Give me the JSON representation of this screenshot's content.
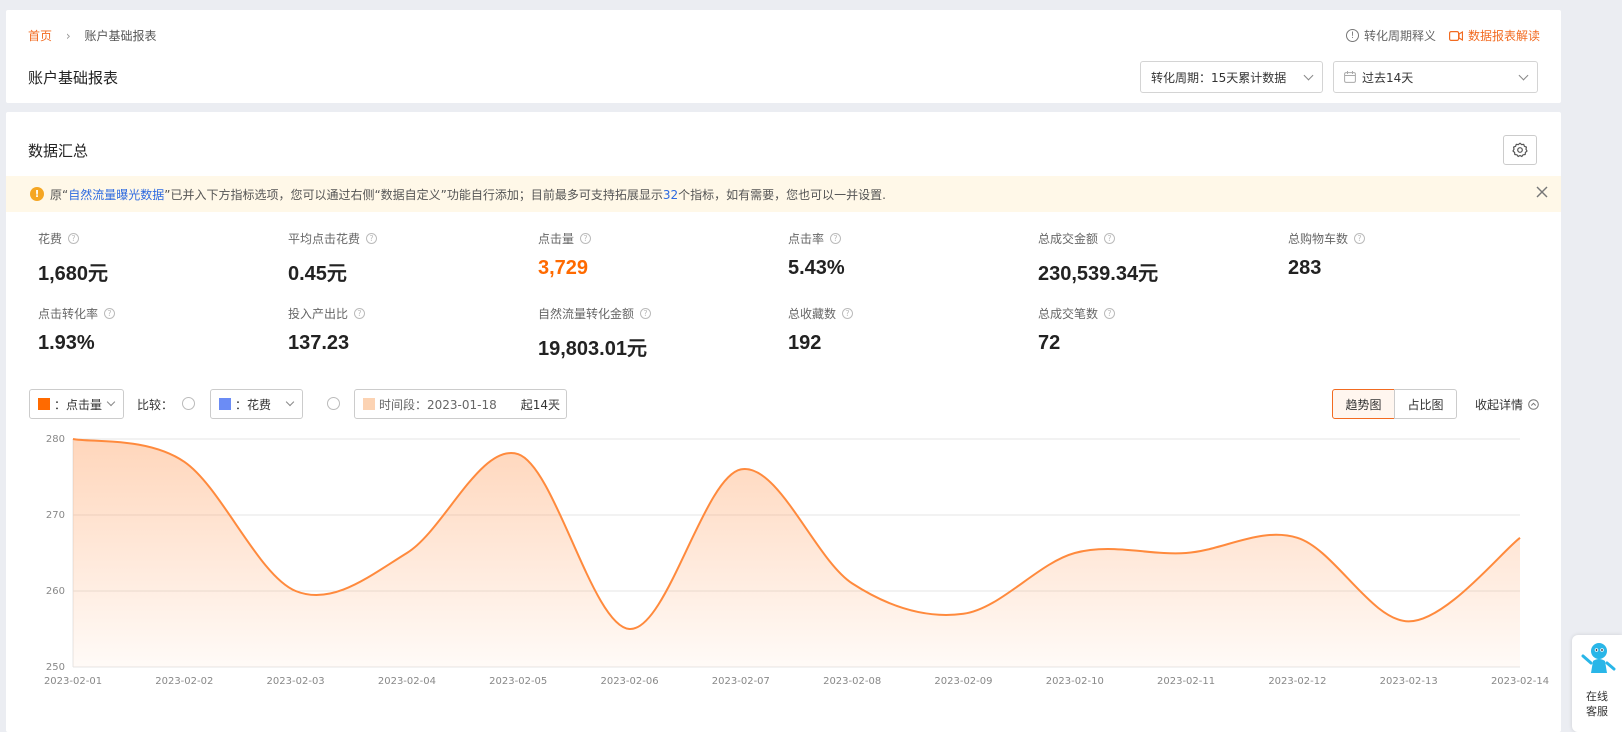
{
  "header": {
    "breadcrumb_home": "首页",
    "breadcrumb_current": "账户基础报表",
    "page_title": "账户基础报表",
    "conversion_help": "转化周期释义",
    "report_guide": "数据报表解读",
    "conversion_select": "转化周期：15天累计数据",
    "date_select": "过去14天"
  },
  "summary": {
    "title": "数据汇总",
    "notice": {
      "p1": "原“",
      "link": "自然流量曝光数据",
      "p2": "”已并入下方指标选项，您可以通过右侧“数据自定义”功能自行添加；目前最多可支持拓展显示",
      "num": "32",
      "p3": "个指标，如有需要，您也可以一并设置."
    },
    "metrics": [
      {
        "label": "花费",
        "value": "1,680元"
      },
      {
        "label": "平均点击花费",
        "value": "0.45元"
      },
      {
        "label": "点击量",
        "value": "3,729",
        "highlight": true
      },
      {
        "label": "点击率",
        "value": "5.43%"
      },
      {
        "label": "总成交金额",
        "value": "230,539.34元"
      },
      {
        "label": "总购物车数",
        "value": "283"
      },
      {
        "label": "点击转化率",
        "value": "1.93%"
      },
      {
        "label": "投入产出比",
        "value": "137.23"
      },
      {
        "label": "自然流量转化金额",
        "value": "19,803.01元"
      },
      {
        "label": "总收藏数",
        "value": "192"
      },
      {
        "label": "总成交笔数",
        "value": "72"
      }
    ]
  },
  "chart_controls": {
    "metric1": "：点击量",
    "compare_label": "比较：",
    "metric2": "：花费",
    "period_label": "时间段：2023-01-18",
    "period_span": "起14天",
    "trend_btn": "趋势图",
    "ratio_btn": "占比图",
    "collapse": "收起详情",
    "colors": {
      "metric1": "#ff6a00",
      "metric2": "#6b8cf5",
      "period": "#fcd3b3"
    }
  },
  "chart_data": {
    "type": "area",
    "x": [
      "2023-02-01",
      "2023-02-02",
      "2023-02-03",
      "2023-02-04",
      "2023-02-05",
      "2023-02-06",
      "2023-02-07",
      "2023-02-08",
      "2023-02-09",
      "2023-02-10",
      "2023-02-11",
      "2023-02-12",
      "2023-02-13",
      "2023-02-14"
    ],
    "series": [
      {
        "name": "点击量",
        "values": [
          280,
          277,
          260,
          265,
          278,
          255,
          276,
          261,
          257,
          265,
          265,
          267,
          256,
          267
        ]
      }
    ],
    "ylim": [
      250,
      280
    ],
    "yticks": [
      250,
      260,
      270,
      280
    ],
    "grid": true,
    "color": "#ff8a3d"
  },
  "service": {
    "line1": "在线",
    "line2": "客服"
  }
}
